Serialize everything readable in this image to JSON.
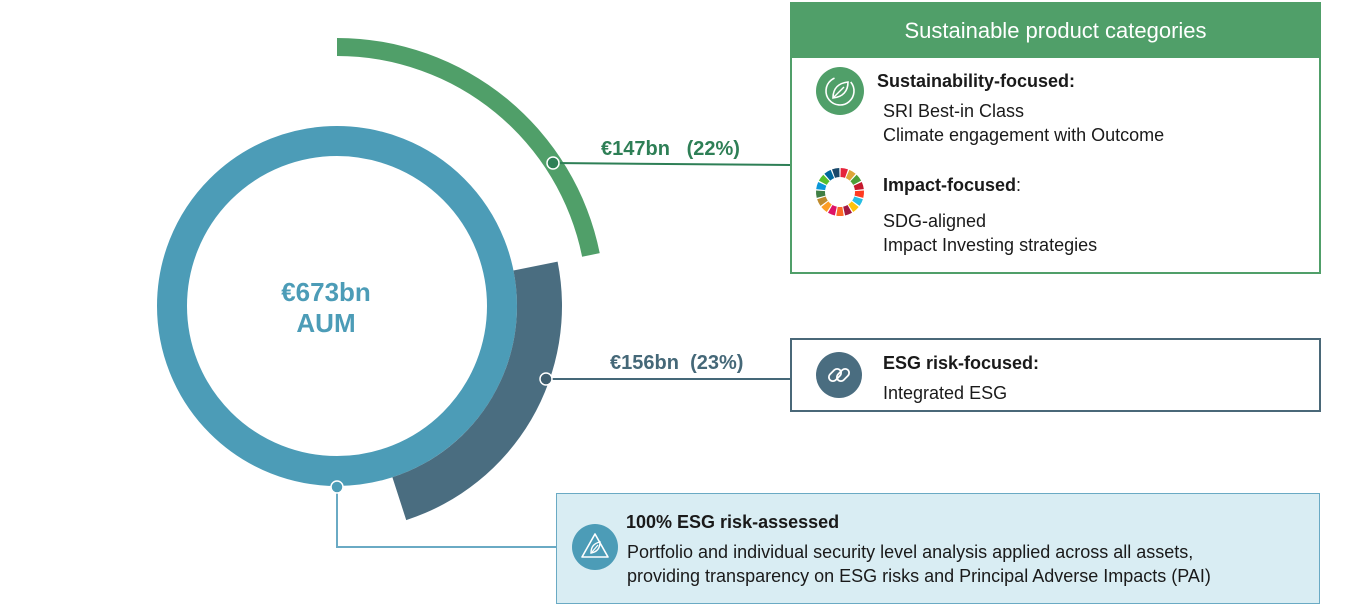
{
  "chart_data": {
    "type": "pie",
    "center_label": {
      "amount": "€673bn",
      "unit": "AUM"
    },
    "total_bn": 673,
    "segments": [
      {
        "name": "Sustainable product categories",
        "amount_label": "€147bn",
        "percent_label": "(22%)",
        "value_bn": 147,
        "percent": 22,
        "color": "#509f69"
      },
      {
        "name": "ESG risk-focused",
        "amount_label": "€156bn",
        "percent_label": "(23%)",
        "value_bn": 156,
        "percent": 23,
        "color": "#4a6d80"
      }
    ],
    "base_ring_color": "#4c9cb7"
  },
  "sustainable_box": {
    "header": "Sustainable product categories",
    "sustainability": {
      "title": "Sustainability-focused:",
      "lines": [
        "SRI Best-in Class",
        "Climate engagement with Outcome"
      ],
      "icon": "leaf-icon"
    },
    "impact": {
      "title": "Impact-focused",
      "suffix": ":",
      "lines": [
        "SDG-aligned",
        "Impact Investing strategies"
      ],
      "icon": "sdg-wheel-icon"
    }
  },
  "esg_risk_box": {
    "title": "ESG risk-focused:",
    "lines": [
      "Integrated ESG"
    ],
    "icon": "chain-link-icon"
  },
  "risk_assessed_box": {
    "title": "100% ESG risk-assessed",
    "lines": [
      "Portfolio and individual security level analysis applied across all assets,",
      "providing transparency on ESG risks and Principal Adverse Impacts (PAI)"
    ],
    "icon": "leaf-triangle-icon"
  },
  "colors": {
    "green": "#509f69",
    "slate": "#4a6d80",
    "blue": "#4c9cb7",
    "light_blue_bg": "#d9edf3",
    "green_text": "#2e7f56",
    "slate_text": "#456878"
  },
  "sdg_colors": [
    "#e5243b",
    "#dda63a",
    "#4c9f38",
    "#c5192d",
    "#ff3a21",
    "#26bde2",
    "#fcc30b",
    "#a21942",
    "#fd6925",
    "#dd1367",
    "#fd9d24",
    "#bf8b2e",
    "#3f7e44",
    "#0a97d9",
    "#56c02b",
    "#00689d",
    "#19486a"
  ]
}
